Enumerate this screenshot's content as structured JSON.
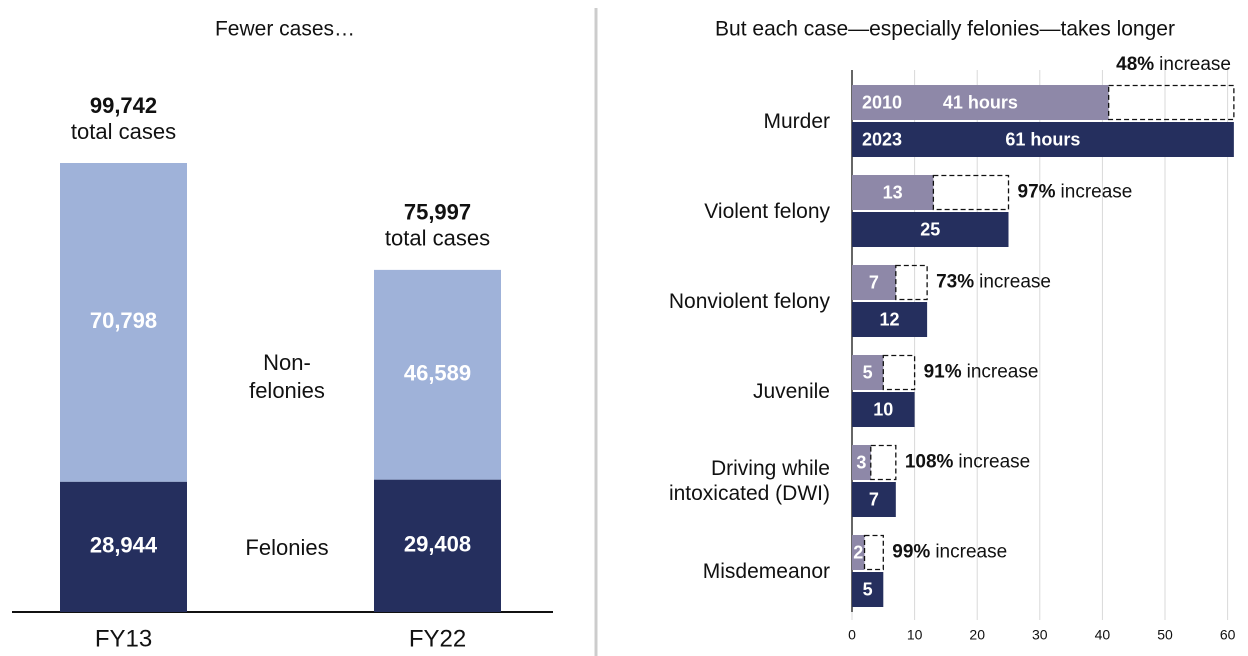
{
  "chart_data": [
    {
      "type": "stacked-bar",
      "title": "Fewer cases…",
      "categories": [
        "FY13",
        "FY22"
      ],
      "series": [
        {
          "name": "Felonies",
          "color": "#252f5e",
          "values": [
            28944,
            29408
          ],
          "value_labels": [
            "28,944",
            "29,408"
          ]
        },
        {
          "name": "Non-felonies",
          "color": "#9fb2d9",
          "values": [
            70798,
            46589
          ],
          "value_labels": [
            "70,798",
            "46,589"
          ]
        }
      ],
      "totals": [
        99742,
        75997
      ],
      "total_labels": [
        "99,742",
        "75,997"
      ],
      "total_caption": "total cases"
    },
    {
      "type": "hbar",
      "title": "But each case—especially felonies—takes longer",
      "categories": [
        "Murder",
        "Violent felony",
        "Nonviolent felony",
        "Juvenile",
        "Driving while intoxicated (DWI)",
        "Misdemeanor"
      ],
      "series": [
        {
          "name": "2010",
          "color": "#8e88a8",
          "values": [
            41,
            13,
            7,
            5,
            3,
            2
          ],
          "value_labels": [
            "41 hours",
            "13",
            "7",
            "5",
            "3",
            "2"
          ]
        },
        {
          "name": "2023",
          "color": "#252f5e",
          "values": [
            61,
            25,
            12,
            10,
            7,
            5
          ],
          "value_labels": [
            "61 hours",
            "25",
            "12",
            "10",
            "7",
            "5"
          ]
        }
      ],
      "increase_values": [
        48,
        97,
        73,
        91,
        108,
        99
      ],
      "increase_labels": [
        "48%",
        "97%",
        "73%",
        "91%",
        "108%",
        "99%"
      ],
      "increase_word": "increase",
      "xlim": [
        0,
        61.5
      ],
      "xticks": [
        0,
        10,
        20,
        30,
        40,
        50,
        60
      ],
      "grid": true
    }
  ]
}
